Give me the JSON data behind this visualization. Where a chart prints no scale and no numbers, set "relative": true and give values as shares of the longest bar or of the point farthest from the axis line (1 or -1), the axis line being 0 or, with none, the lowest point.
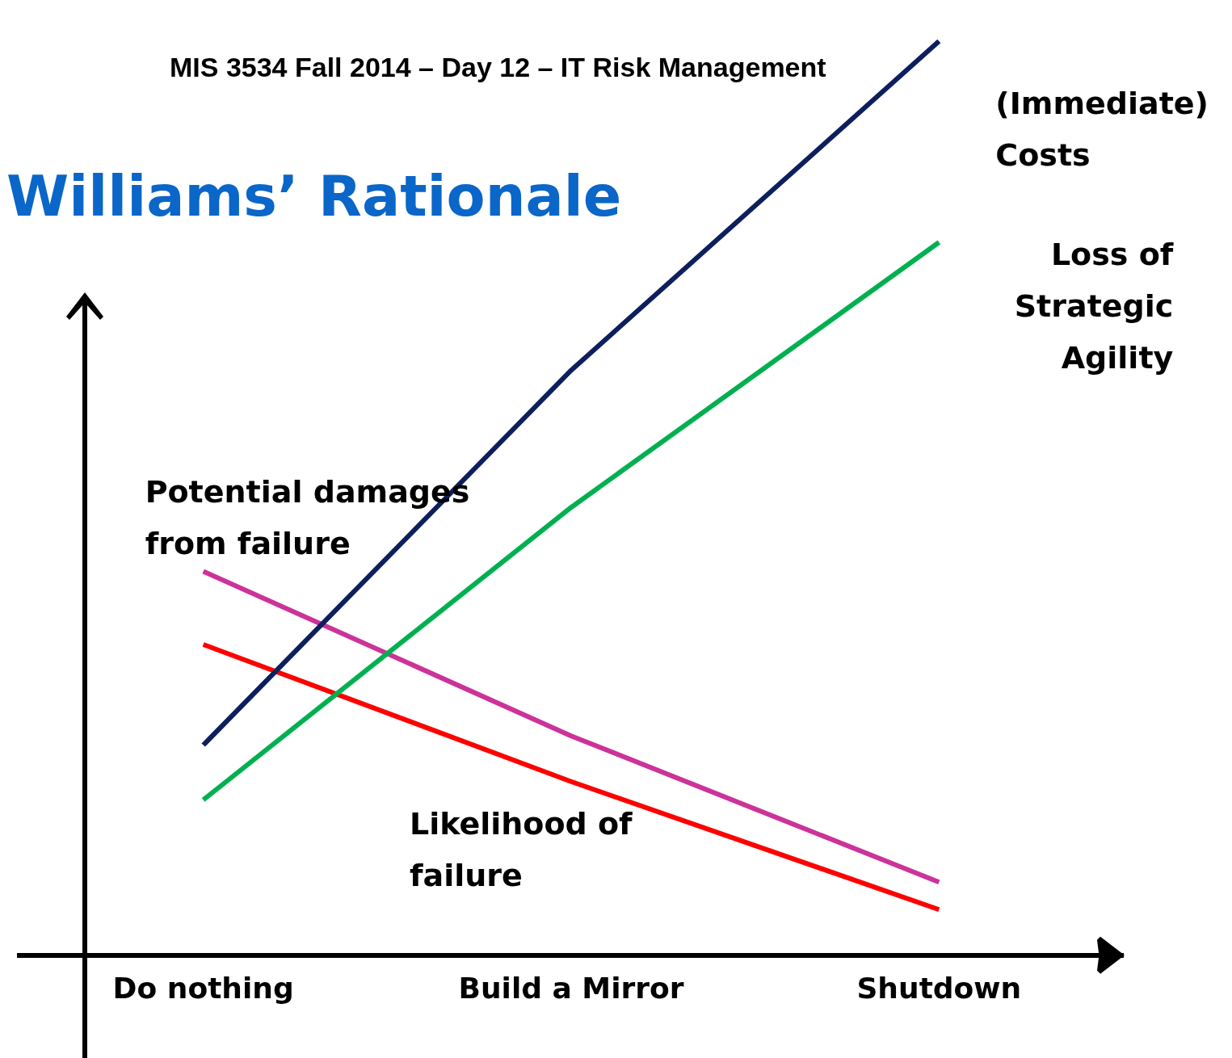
{
  "chart_data": {
    "type": "line",
    "title": "Williams’ Rationale",
    "subtitle": "MIS 3534 Fall 2014 – Day 12 – IT Risk Management",
    "relative": true,
    "categories": [
      "Do nothing",
      "Build a Mirror",
      "Shutdown"
    ],
    "series": [
      {
        "name": "(Immediate) Costs",
        "color": "#0d1f5c",
        "values": [
          0.23,
          0.64,
          1
        ]
      },
      {
        "name": "Loss of Strategic Agility",
        "color": "#00b050",
        "values": [
          0.17,
          0.49,
          0.78
        ]
      },
      {
        "name": "Potential damages from failure",
        "color": "#cc3399",
        "values": [
          0.42,
          0.24,
          0.08
        ]
      },
      {
        "name": "Likelihood of failure",
        "color": "#ff0000",
        "values": [
          0.34,
          0.19,
          0.05
        ]
      }
    ],
    "legend": false,
    "grid": false,
    "marker": "none",
    "line_style": "solid"
  }
}
